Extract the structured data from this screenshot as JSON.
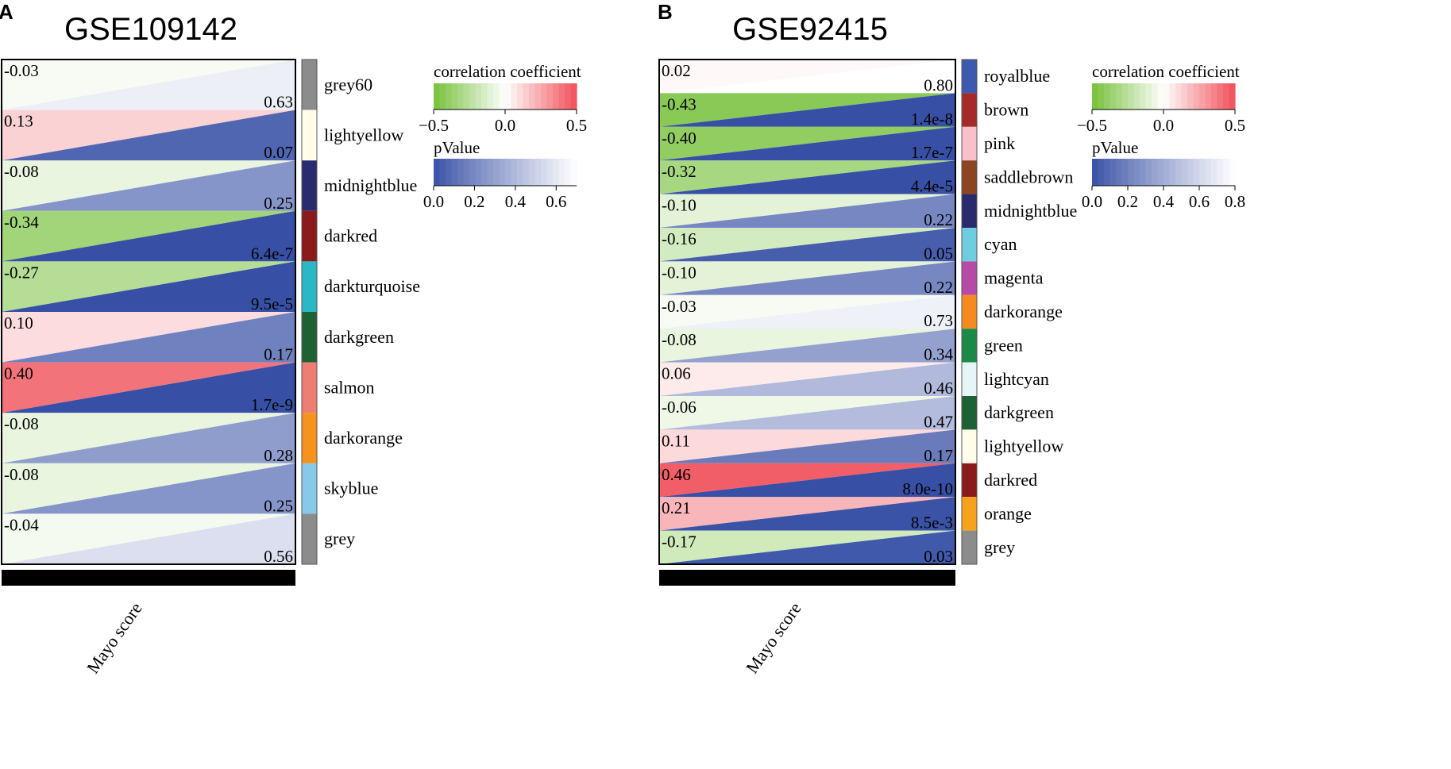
{
  "chart_data": [
    {
      "type": "heatmap",
      "panel_label": "A",
      "title": "GSE109142",
      "trait": "Mayo score",
      "modules": [
        {
          "name": "grey60",
          "color": "#8c8c8c",
          "r": "-0.03",
          "p": "0.63",
          "r_val": -0.03,
          "p_val": 0.63
        },
        {
          "name": "lightyellow",
          "color": "#fffdea",
          "r": "0.13",
          "p": "0.07",
          "r_val": 0.13,
          "p_val": 0.07
        },
        {
          "name": "midnightblue",
          "color": "#2a2a6e",
          "r": "-0.08",
          "p": "0.25",
          "r_val": -0.08,
          "p_val": 0.25
        },
        {
          "name": "darkred",
          "color": "#8b1a1a",
          "r": "-0.34",
          "p": "6.4e-7",
          "r_val": -0.34,
          "p_val": 6.4e-07
        },
        {
          "name": "darkturquoise",
          "color": "#2bb8c6",
          "r": "-0.27",
          "p": "9.5e-5",
          "r_val": -0.27,
          "p_val": 9.5e-05
        },
        {
          "name": "darkgreen",
          "color": "#1e6134",
          "r": "0.10",
          "p": "0.17",
          "r_val": 0.1,
          "p_val": 0.17
        },
        {
          "name": "salmon",
          "color": "#f07d72",
          "r": "0.40",
          "p": "1.7e-9",
          "r_val": 0.4,
          "p_val": 1.7e-09
        },
        {
          "name": "darkorange",
          "color": "#f7921e",
          "r": "-0.08",
          "p": "0.28",
          "r_val": -0.08,
          "p_val": 0.28
        },
        {
          "name": "skyblue",
          "color": "#87c9e8",
          "r": "-0.08",
          "p": "0.25",
          "r_val": -0.08,
          "p_val": 0.25
        },
        {
          "name": "grey",
          "color": "#8c8c8c",
          "r": "-0.04",
          "p": "0.56",
          "r_val": -0.04,
          "p_val": 0.56
        }
      ],
      "legend": {
        "correlation_title": "correlation coefficient",
        "correlation_range": [
          -0.5,
          0.5
        ],
        "correlation_ticks": [
          "−0.5",
          "0.0",
          "0.5"
        ],
        "pvalue_title": "pValue",
        "pvalue_range": [
          0,
          0.7
        ],
        "pvalue_ticks": [
          "0.0",
          "0.2",
          "0.4",
          "0.6"
        ]
      }
    },
    {
      "type": "heatmap",
      "panel_label": "B",
      "title": "GSE92415",
      "trait": "Mayo score",
      "modules": [
        {
          "name": "royalblue",
          "color": "#3e5ab0",
          "r": "0.02",
          "p": "0.80",
          "r_val": 0.02,
          "p_val": 0.8
        },
        {
          "name": "brown",
          "color": "#a52a2a",
          "r": "-0.43",
          "p": "1.4e-8",
          "r_val": -0.43,
          "p_val": 1.4e-08
        },
        {
          "name": "pink",
          "color": "#f9bfcb",
          "r": "-0.40",
          "p": "1.7e-7",
          "r_val": -0.4,
          "p_val": 1.7e-07
        },
        {
          "name": "saddlebrown",
          "color": "#8b4520",
          "r": "-0.32",
          "p": "4.4e-5",
          "r_val": -0.32,
          "p_val": 4.4e-05
        },
        {
          "name": "midnightblue",
          "color": "#2a2a6e",
          "r": "-0.10",
          "p": "0.22",
          "r_val": -0.1,
          "p_val": 0.22
        },
        {
          "name": "cyan",
          "color": "#6fcde0",
          "r": "-0.16",
          "p": "0.05",
          "r_val": -0.16,
          "p_val": 0.05
        },
        {
          "name": "magenta",
          "color": "#b74aa6",
          "r": "-0.10",
          "p": "0.22",
          "r_val": -0.1,
          "p_val": 0.22
        },
        {
          "name": "darkorange",
          "color": "#f58a1f",
          "r": "-0.03",
          "p": "0.73",
          "r_val": -0.03,
          "p_val": 0.73
        },
        {
          "name": "green",
          "color": "#1c8a47",
          "r": "-0.08",
          "p": "0.34",
          "r_val": -0.08,
          "p_val": 0.34
        },
        {
          "name": "lightcyan",
          "color": "#e6f6f6",
          "r": "0.06",
          "p": "0.46",
          "r_val": 0.06,
          "p_val": 0.46
        },
        {
          "name": "darkgreen",
          "color": "#1e6134",
          "r": "-0.06",
          "p": "0.47",
          "r_val": -0.06,
          "p_val": 0.47
        },
        {
          "name": "lightyellow",
          "color": "#fffdea",
          "r": "0.11",
          "p": "0.17",
          "r_val": 0.11,
          "p_val": 0.17
        },
        {
          "name": "darkred",
          "color": "#8b1a1a",
          "r": "0.46",
          "p": "8.0e-10",
          "r_val": 0.46,
          "p_val": 8e-10
        },
        {
          "name": "orange",
          "color": "#f6a21c",
          "r": "0.21",
          "p": "8.5e-3",
          "r_val": 0.21,
          "p_val": 0.0085
        },
        {
          "name": "grey",
          "color": "#8c8c8c",
          "r": "-0.17",
          "p": "0.03",
          "r_val": -0.17,
          "p_val": 0.03
        }
      ],
      "legend": {
        "correlation_title": "correlation coefficient",
        "correlation_range": [
          -0.5,
          0.5
        ],
        "correlation_ticks": [
          "−0.5",
          "0.0",
          "0.5"
        ],
        "pvalue_title": "pValue",
        "pvalue_range": [
          0,
          0.8
        ],
        "pvalue_ticks": [
          "0.0",
          "0.2",
          "0.4",
          "0.6",
          "0.8"
        ]
      }
    }
  ]
}
